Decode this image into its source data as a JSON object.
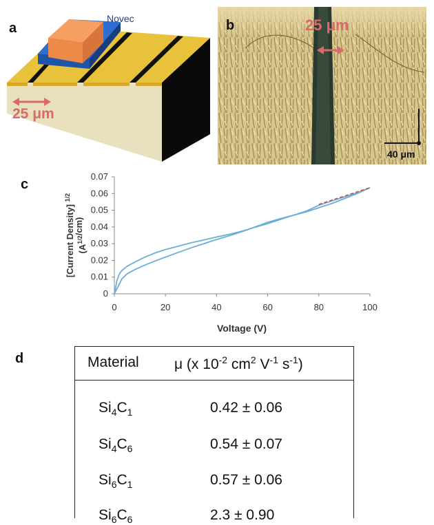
{
  "panel_labels": {
    "a": "a",
    "b": "b",
    "c": "c",
    "d": "d"
  },
  "panel_a": {
    "novec_label": "Novec",
    "gap_label": "25 μm"
  },
  "panel_b": {
    "gap_label": "25 μm",
    "scale_label": "40 μm"
  },
  "chart_data": {
    "type": "line",
    "title": "",
    "xlabel": "Voltage (V)",
    "ylabel_line1": "[Current Density] 1/2",
    "ylabel_line2": "(A1/2/cm)",
    "xlim": [
      0,
      100
    ],
    "ylim": [
      0,
      0.07
    ],
    "x_ticks": [
      "0",
      "20",
      "40",
      "60",
      "80",
      "100"
    ],
    "y_ticks": [
      "0",
      "0.01",
      "0.02",
      "0.03",
      "0.04",
      "0.05",
      "0.06",
      "0.07"
    ],
    "series": [
      {
        "color": "#6baed6",
        "x": [
          0,
          0.5,
          1,
          2,
          3,
          5,
          8,
          12,
          16,
          20,
          25,
          30,
          35,
          40,
          45,
          50,
          55,
          60,
          65,
          70,
          75,
          80,
          85,
          90,
          95,
          100
        ],
        "y": [
          0,
          0.004,
          0.008,
          0.012,
          0.014,
          0.0165,
          0.019,
          0.022,
          0.0245,
          0.0265,
          0.0285,
          0.0305,
          0.0322,
          0.034,
          0.0356,
          0.0375,
          0.0398,
          0.042,
          0.0445,
          0.047,
          0.049,
          0.0515,
          0.054,
          0.057,
          0.06,
          0.0635
        ]
      },
      {
        "color": "#6baed6",
        "x": [
          0,
          1,
          2,
          3,
          5,
          8,
          12,
          16,
          20,
          25,
          30,
          35,
          40,
          45,
          50,
          55,
          60,
          65,
          70,
          75,
          80,
          85,
          90,
          95,
          100
        ],
        "y": [
          0,
          0.003,
          0.006,
          0.009,
          0.012,
          0.0145,
          0.0172,
          0.0197,
          0.022,
          0.0248,
          0.0275,
          0.03,
          0.0325,
          0.0348,
          0.0372,
          0.04,
          0.0428,
          0.045,
          0.047,
          0.0495,
          0.053,
          0.0555,
          0.058,
          0.0605,
          0.0635
        ]
      },
      {
        "color": "#c0504d",
        "style": "dashed",
        "x": [
          80,
          100
        ],
        "y": [
          0.0535,
          0.0635
        ]
      }
    ]
  },
  "table": {
    "headers": [
      "Material",
      "μ (x 10",
      "-2",
      " cm",
      "2",
      " V",
      "-1",
      " s",
      "-1",
      ")"
    ],
    "rows": [
      {
        "m1": "Si",
        "s1": "4",
        "m2": "C",
        "s2": "1",
        "value": "0.42 ± 0.06"
      },
      {
        "m1": "Si",
        "s1": "4",
        "m2": "C",
        "s2": "6",
        "value": "0.54 ± 0.07"
      },
      {
        "m1": "Si",
        "s1": "6",
        "m2": "C",
        "s2": "1",
        "value": "0.57 ± 0.06"
      },
      {
        "m1": "Si",
        "s1": "6",
        "m2": "C",
        "s2": "6",
        "value": "2.3 ± 0.90"
      }
    ]
  }
}
